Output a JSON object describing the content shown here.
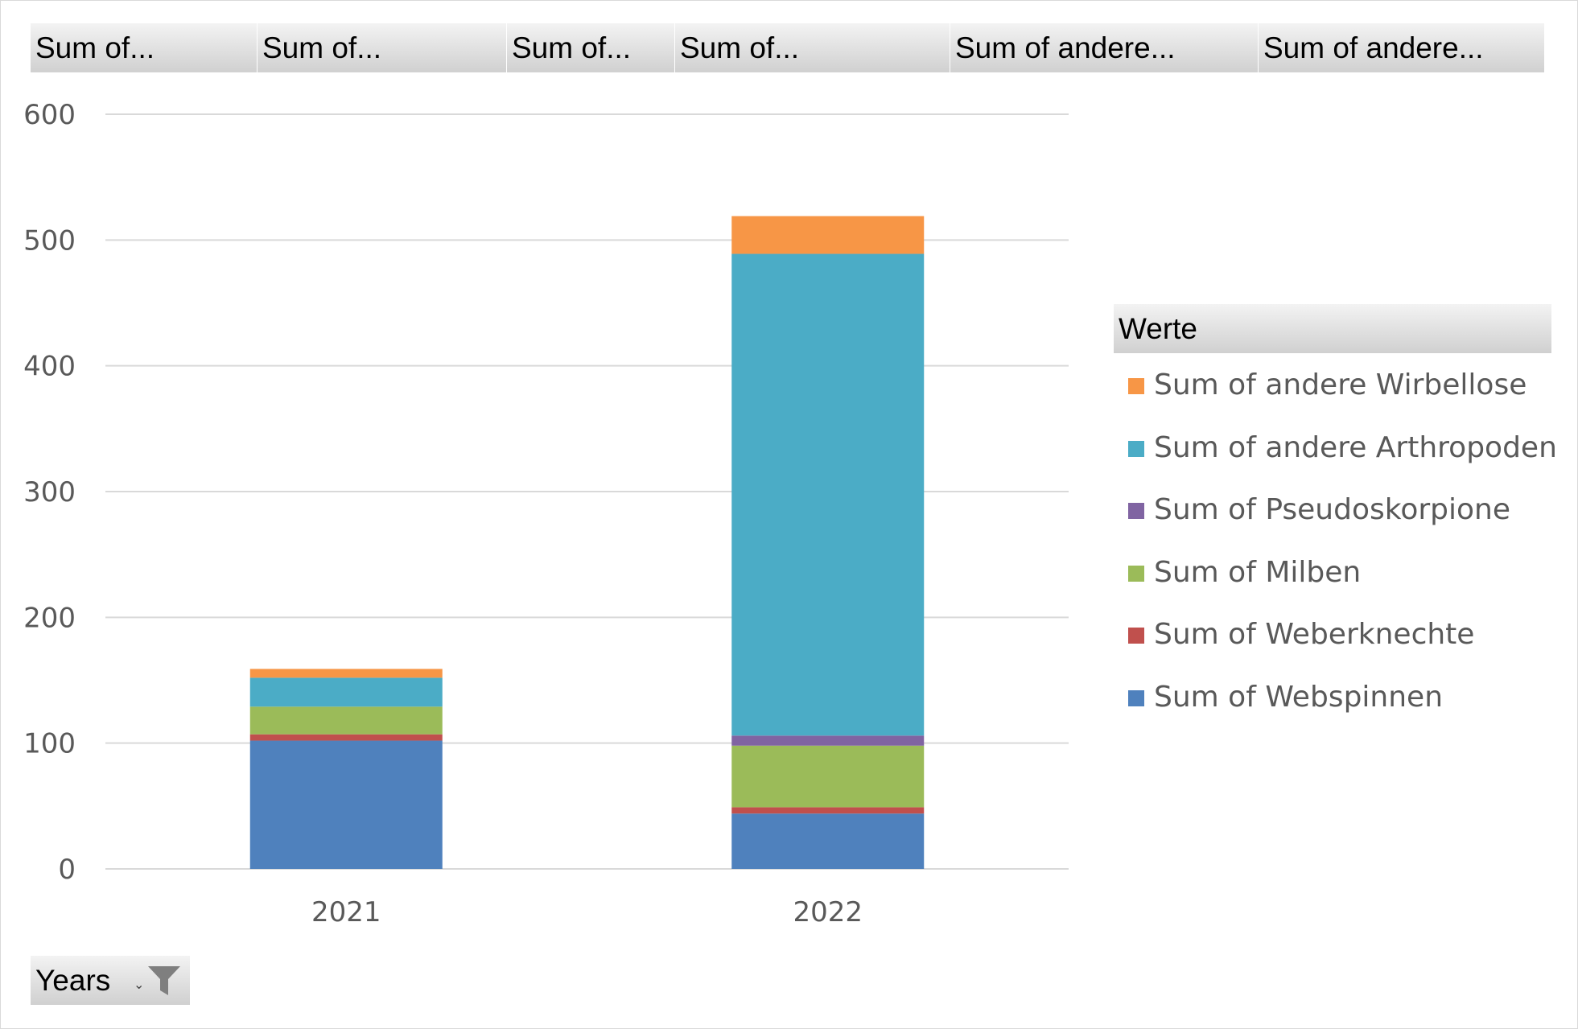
{
  "field_buttons": [
    {
      "label": "Sum of..."
    },
    {
      "label": "Sum of..."
    },
    {
      "label": "Sum of..."
    },
    {
      "label": "Sum of..."
    },
    {
      "label": "Sum of andere..."
    },
    {
      "label": "Sum of andere..."
    }
  ],
  "legend_title": "Werte",
  "years_button": {
    "label": "Years",
    "arrow": "⌄",
    "icon": "filter-icon"
  },
  "chart_data": {
    "type": "bar",
    "stacked": true,
    "categories": [
      "2021",
      "2022"
    ],
    "ylim": [
      0,
      600
    ],
    "yticks": [
      0,
      100,
      200,
      300,
      400,
      500,
      600
    ],
    "grid": true,
    "legend_placement": "right",
    "series": [
      {
        "name": "Sum of Webspinnen",
        "color": "#4f81bd",
        "values": [
          102,
          44
        ]
      },
      {
        "name": "Sum of Weberknechte",
        "color": "#c0504d",
        "values": [
          5,
          5
        ]
      },
      {
        "name": "Sum of Milben",
        "color": "#9bbb59",
        "values": [
          22,
          49
        ]
      },
      {
        "name": "Sum of Pseudoskorpione",
        "color": "#8064a2",
        "values": [
          0,
          8
        ]
      },
      {
        "name": "Sum of andere Arthropoden",
        "color": "#4bacc6",
        "values": [
          23,
          383
        ]
      },
      {
        "name": "Sum of andere Wirbellose",
        "color": "#f79646",
        "values": [
          7,
          30
        ]
      }
    ]
  }
}
